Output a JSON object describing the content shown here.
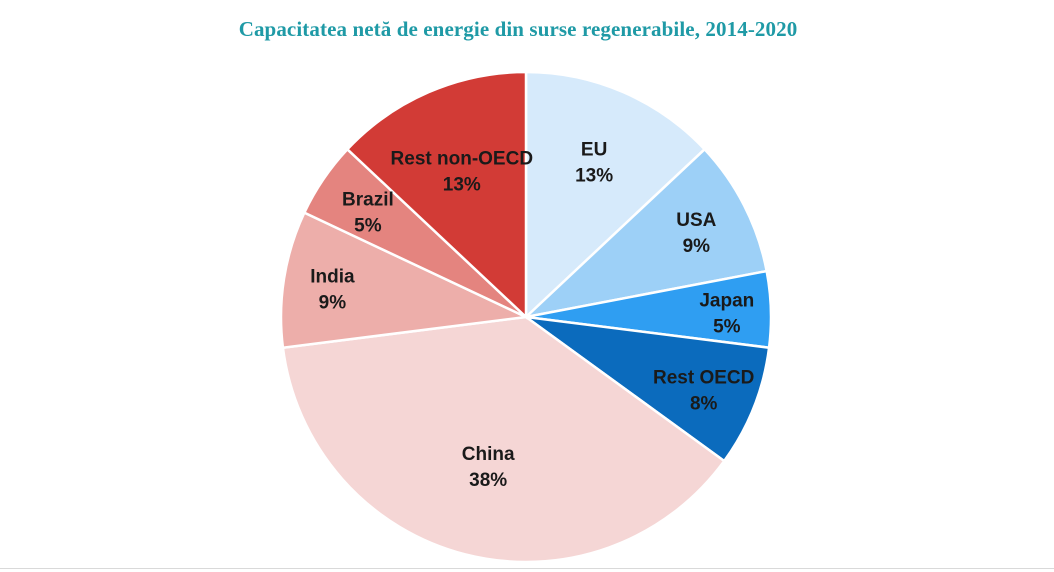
{
  "title": "Capacitatea netă de energie din surse regenerabile, 2014-2020",
  "chart_data": {
    "type": "pie",
    "title": "Capacitatea netă de energie din surse regenerabile, 2014-2020",
    "start_angle_deg": 0,
    "direction": "clockwise",
    "slices": [
      {
        "label": "EU",
        "value": 13,
        "value_label": "13%",
        "color": "#d6eafb"
      },
      {
        "label": "USA",
        "value": 9,
        "value_label": "9%",
        "color": "#9dd0f7"
      },
      {
        "label": "Japan",
        "value": 5,
        "value_label": "5%",
        "color": "#2f9ef2"
      },
      {
        "label": "Rest OECD",
        "value": 8,
        "value_label": "8%",
        "color": "#0b6bbd"
      },
      {
        "label": "China",
        "value": 38,
        "value_label": "38%",
        "color": "#f5d6d5"
      },
      {
        "label": "India",
        "value": 9,
        "value_label": "9%",
        "color": "#edaeaa"
      },
      {
        "label": "Brazil",
        "value": 5,
        "value_label": "5%",
        "color": "#e4847f"
      },
      {
        "label": "Rest non-OECD",
        "value": 13,
        "value_label": "13%",
        "color": "#d23b36"
      }
    ]
  }
}
